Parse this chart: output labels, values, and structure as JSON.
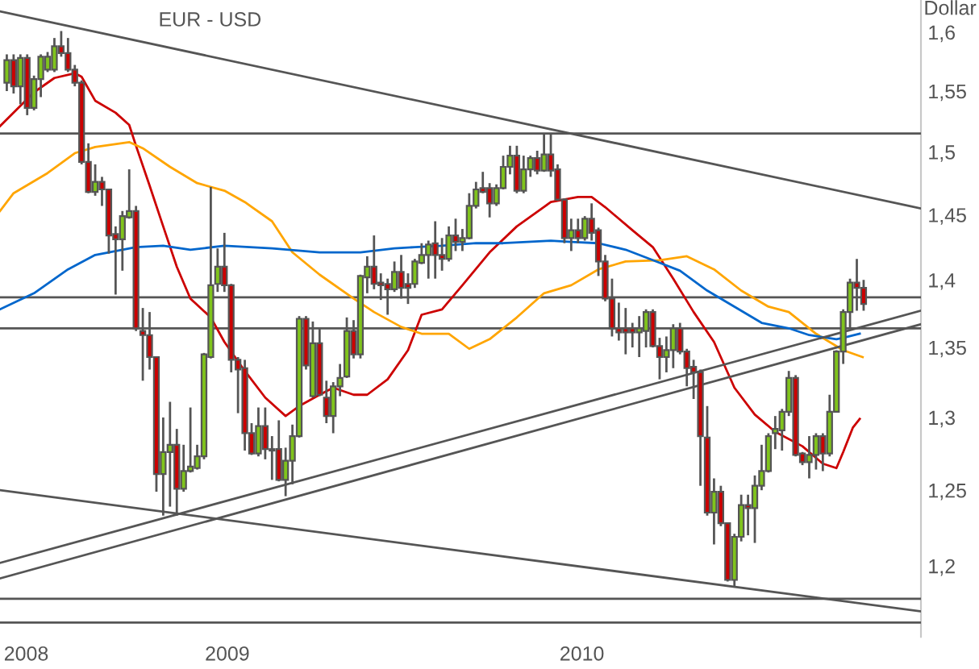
{
  "chart_data": {
    "type": "candlestick",
    "title": "EUR - USD",
    "ylabel": "Dollar",
    "colors": [
      "#80c41c",
      "#cc0000",
      "#80c41c",
      "#cc0000",
      "#80c41c",
      "#80c41c",
      "#80c41c",
      "#80c41c",
      "#cc0000",
      "#cc0000",
      "#cc0000",
      "#cc0000",
      "#cc0000",
      "#80c41c",
      "#cc0000",
      "#cc0000",
      "#cc0000",
      "#80c41c",
      "#80c41c",
      "#cc0000",
      "#cc0000",
      "#cc0000",
      "#cc0000",
      "#80c41c",
      "#80c41c",
      "#cc0000",
      "#80c41c",
      "#80c41c",
      "#80c41c",
      "#80c41c",
      "#80c41c",
      "#80c41c",
      "#cc0000",
      "#cc0000",
      "#cc0000",
      "#cc0000",
      "#cc0000",
      "#80c41c",
      "#cc0000",
      "#cc0000",
      "#cc0000",
      "#80c41c",
      "#80c41c",
      "#80c41c",
      "#cc0000",
      "#80c41c",
      "#cc0000",
      "#cc0000",
      "#80c41c",
      "#80c41c",
      "#80c41c",
      "#cc0000",
      "#80c41c",
      "#80c41c",
      "#cc0000",
      "#cc0000",
      "#cc0000",
      "#80c41c",
      "#cc0000",
      "#cc0000",
      "#80c41c",
      "#80c41c",
      "#80c41c",
      "#cc0000",
      "#cc0000",
      "#80c41c",
      "#cc0000",
      "#80c41c",
      "#80c41c",
      "#80c41c",
      "#cc0000",
      "#cc0000",
      "#80c41c",
      "#80c41c",
      "#80c41c",
      "#cc0000",
      "#80c41c",
      "#80c41c",
      "#cc0000",
      "#80c41c",
      "#cc0000",
      "#cc0000",
      "#cc0000",
      "#80c41c",
      "#cc0000",
      "#80c41c",
      "#cc0000",
      "#cc0000",
      "#cc0000",
      "#cc0000",
      "#cc0000",
      "#cc0000",
      "#cc0000",
      "#80c41c",
      "#80c41c",
      "#cc0000",
      "#cc0000",
      "#80c41c",
      "#80c41c",
      "#cc0000",
      "#cc0000",
      "#cc0000",
      "#cc0000",
      "#cc0000",
      "#80c41c",
      "#cc0000",
      "#cc0000",
      "#80c41c",
      "#80c41c",
      "#cc0000",
      "#80c41c",
      "#80c41c",
      "#80c41c",
      "#80c41c",
      "#80c41c",
      "#80c41c",
      "#cc0000",
      "#cc0000",
      "#80c41c",
      "#80c41c",
      "#cc0000",
      "#80c41c",
      "#80c41c",
      "#80c41c",
      "#80c41c",
      "#cc0000",
      "#cc0000"
    ],
    "x": [
      "2008-05-19",
      "2008-05-26",
      "2008-06-02",
      "2008-06-09",
      "2008-06-16",
      "2008-06-23",
      "2008-06-30",
      "2008-07-07",
      "2008-07-14",
      "2008-07-21",
      "2008-07-28",
      "2008-08-04",
      "2008-08-11",
      "2008-08-18",
      "2008-08-25",
      "2008-09-01",
      "2008-09-08",
      "2008-09-15",
      "2008-09-22",
      "2008-09-29",
      "2008-10-06",
      "2008-10-13",
      "2008-10-20",
      "2008-10-27",
      "2008-11-03",
      "2008-11-10",
      "2008-11-17",
      "2008-11-24",
      "2008-12-01",
      "2008-12-08",
      "2008-12-15",
      "2008-12-22",
      "2008-12-29",
      "2009-01-05",
      "2009-01-12",
      "2009-01-19",
      "2009-01-26",
      "2009-02-02",
      "2009-02-09",
      "2009-02-16",
      "2009-02-23",
      "2009-03-02",
      "2009-03-09",
      "2009-03-16",
      "2009-03-23",
      "2009-03-30",
      "2009-04-06",
      "2009-04-13",
      "2009-04-20",
      "2009-04-27",
      "2009-05-04",
      "2009-05-11",
      "2009-05-18",
      "2009-05-25",
      "2009-06-01",
      "2009-06-08",
      "2009-06-15",
      "2009-06-22",
      "2009-06-29",
      "2009-07-06",
      "2009-07-13",
      "2009-07-20",
      "2009-07-27",
      "2009-08-03",
      "2009-08-10",
      "2009-08-17",
      "2009-08-24",
      "2009-08-31",
      "2009-09-07",
      "2009-09-14",
      "2009-09-21",
      "2009-09-28",
      "2009-10-05",
      "2009-10-12",
      "2009-10-19",
      "2009-10-26",
      "2009-11-02",
      "2009-11-09",
      "2009-11-16",
      "2009-11-23",
      "2009-11-30",
      "2009-12-07",
      "2009-12-14",
      "2009-12-21",
      "2009-12-28",
      "2010-01-04",
      "2010-01-11",
      "2010-01-18",
      "2010-01-25",
      "2010-02-01",
      "2010-02-08",
      "2010-02-15",
      "2010-02-22",
      "2010-03-01",
      "2010-03-08",
      "2010-03-15",
      "2010-03-22",
      "2010-03-29",
      "2010-04-05",
      "2010-04-12",
      "2010-04-19",
      "2010-04-26",
      "2010-05-03",
      "2010-05-10",
      "2010-05-17",
      "2010-05-24",
      "2010-05-31",
      "2010-06-07",
      "2010-06-14",
      "2010-06-21",
      "2010-06-28",
      "2010-07-05",
      "2010-07-12",
      "2010-07-19",
      "2010-07-26",
      "2010-08-02",
      "2010-08-09",
      "2010-08-16",
      "2010-08-23",
      "2010-08-30",
      "2010-09-06",
      "2010-09-13",
      "2010-09-20",
      "2010-09-27",
      "2010-10-04",
      "2010-10-11",
      "2010-10-18"
    ],
    "ohlc": [
      [
        1.557,
        1.581,
        1.55,
        1.576
      ],
      [
        1.576,
        1.581,
        1.548,
        1.554
      ],
      [
        1.554,
        1.581,
        1.539,
        1.578
      ],
      [
        1.578,
        1.581,
        1.53,
        1.536
      ],
      [
        1.536,
        1.563,
        1.534,
        1.56
      ],
      [
        1.56,
        1.581,
        1.545,
        1.579
      ],
      [
        1.568,
        1.583,
        1.566,
        1.579
      ],
      [
        1.568,
        1.595,
        1.566,
        1.588
      ],
      [
        1.588,
        1.601,
        1.579,
        1.582
      ],
      [
        1.582,
        1.595,
        1.566,
        1.568
      ],
      [
        1.568,
        1.572,
        1.554,
        1.557
      ],
      [
        1.557,
        1.559,
        1.49,
        1.492
      ],
      [
        1.492,
        1.507,
        1.467,
        1.468
      ],
      [
        1.468,
        1.49,
        1.465,
        1.476
      ],
      [
        1.476,
        1.48,
        1.457,
        1.47
      ],
      [
        1.47,
        1.47,
        1.42,
        1.434
      ],
      [
        1.435,
        1.441,
        1.389,
        1.431
      ],
      [
        1.431,
        1.453,
        1.407,
        1.449
      ],
      [
        1.448,
        1.486,
        1.447,
        1.453
      ],
      [
        1.453,
        1.457,
        1.362,
        1.364
      ],
      [
        1.362,
        1.379,
        1.326,
        1.359
      ],
      [
        1.359,
        1.376,
        1.334,
        1.343
      ],
      [
        1.343,
        1.343,
        1.249,
        1.261
      ],
      [
        1.261,
        1.3,
        1.233,
        1.276
      ],
      [
        1.276,
        1.311,
        1.239,
        1.281
      ],
      [
        1.281,
        1.292,
        1.233,
        1.251
      ],
      [
        1.251,
        1.281,
        1.249,
        1.263
      ],
      [
        1.263,
        1.307,
        1.262,
        1.266
      ],
      [
        1.265,
        1.281,
        1.264,
        1.273
      ],
      [
        1.273,
        1.346,
        1.271,
        1.345
      ],
      [
        1.343,
        1.472,
        1.342,
        1.396
      ],
      [
        1.397,
        1.424,
        1.391,
        1.41
      ],
      [
        1.41,
        1.436,
        1.391,
        1.396
      ],
      [
        1.396,
        1.397,
        1.332,
        1.341
      ],
      [
        1.341,
        1.343,
        1.303,
        1.334
      ],
      [
        1.335,
        1.341,
        1.277,
        1.289
      ],
      [
        1.289,
        1.296,
        1.274,
        1.275
      ],
      [
        1.275,
        1.307,
        1.273,
        1.294
      ],
      [
        1.294,
        1.307,
        1.271,
        1.278
      ],
      [
        1.278,
        1.287,
        1.257,
        1.277
      ],
      [
        1.278,
        1.298,
        1.256,
        1.257
      ],
      [
        1.257,
        1.279,
        1.246,
        1.27
      ],
      [
        1.27,
        1.295,
        1.254,
        1.287
      ],
      [
        1.287,
        1.373,
        1.286,
        1.371
      ],
      [
        1.371,
        1.373,
        1.334,
        1.337
      ],
      [
        1.315,
        1.369,
        1.314,
        1.353
      ],
      [
        1.353,
        1.364,
        1.315,
        1.316
      ],
      [
        1.314,
        1.326,
        1.296,
        1.301
      ],
      [
        1.301,
        1.325,
        1.289,
        1.322
      ],
      [
        1.322,
        1.338,
        1.315,
        1.328
      ],
      [
        1.329,
        1.372,
        1.328,
        1.362
      ],
      [
        1.362,
        1.37,
        1.342,
        1.345
      ],
      [
        1.345,
        1.404,
        1.342,
        1.403
      ],
      [
        1.402,
        1.418,
        1.39,
        1.41
      ],
      [
        1.41,
        1.434,
        1.393,
        1.397
      ],
      [
        1.398,
        1.405,
        1.385,
        1.396
      ],
      [
        1.397,
        1.401,
        1.374,
        1.393
      ],
      [
        1.393,
        1.414,
        1.391,
        1.406
      ],
      [
        1.406,
        1.419,
        1.386,
        1.394
      ],
      [
        1.397,
        1.405,
        1.382,
        1.394
      ],
      [
        1.397,
        1.416,
        1.394,
        1.414
      ],
      [
        1.413,
        1.428,
        1.412,
        1.419
      ],
      [
        1.419,
        1.43,
        1.401,
        1.427
      ],
      [
        1.428,
        1.445,
        1.401,
        1.419
      ],
      [
        1.419,
        1.432,
        1.407,
        1.416
      ],
      [
        1.416,
        1.441,
        1.414,
        1.434
      ],
      [
        1.434,
        1.447,
        1.422,
        1.429
      ],
      [
        1.429,
        1.439,
        1.422,
        1.432
      ],
      [
        1.432,
        1.467,
        1.431,
        1.457
      ],
      [
        1.457,
        1.476,
        1.455,
        1.47
      ],
      [
        1.471,
        1.484,
        1.467,
        1.468
      ],
      [
        1.471,
        1.475,
        1.448,
        1.459
      ],
      [
        1.459,
        1.474,
        1.457,
        1.471
      ],
      [
        1.471,
        1.497,
        1.47,
        1.488
      ],
      [
        1.488,
        1.505,
        1.482,
        1.497
      ],
      [
        1.497,
        1.505,
        1.467,
        1.469
      ],
      [
        1.469,
        1.497,
        1.467,
        1.486
      ],
      [
        1.486,
        1.497,
        1.48,
        1.495
      ],
      [
        1.495,
        1.501,
        1.482,
        1.485
      ],
      [
        1.485,
        1.515,
        1.484,
        1.498
      ],
      [
        1.498,
        1.515,
        1.48,
        1.485
      ],
      [
        1.486,
        1.49,
        1.461,
        1.462
      ],
      [
        1.462,
        1.463,
        1.428,
        1.432
      ],
      [
        1.432,
        1.447,
        1.422,
        1.438
      ],
      [
        1.438,
        1.447,
        1.428,
        1.432
      ],
      [
        1.432,
        1.449,
        1.43,
        1.447
      ],
      [
        1.447,
        1.459,
        1.43,
        1.436
      ],
      [
        1.438,
        1.44,
        1.403,
        1.414
      ],
      [
        1.414,
        1.419,
        1.384,
        1.386
      ],
      [
        1.386,
        1.401,
        1.358,
        1.364
      ],
      [
        1.364,
        1.383,
        1.355,
        1.361
      ],
      [
        1.364,
        1.379,
        1.345,
        1.361
      ],
      [
        1.364,
        1.368,
        1.35,
        1.361
      ],
      [
        1.361,
        1.373,
        1.343,
        1.364
      ],
      [
        1.362,
        1.378,
        1.35,
        1.376
      ],
      [
        1.376,
        1.378,
        1.35,
        1.351
      ],
      [
        1.351,
        1.357,
        1.327,
        1.343
      ],
      [
        1.343,
        1.358,
        1.332,
        1.348
      ],
      [
        1.348,
        1.367,
        1.335,
        1.364
      ],
      [
        1.364,
        1.368,
        1.345,
        1.347
      ],
      [
        1.347,
        1.349,
        1.322,
        1.335
      ],
      [
        1.336,
        1.341,
        1.313,
        1.332
      ],
      [
        1.332,
        1.334,
        1.253,
        1.287
      ],
      [
        1.286,
        1.308,
        1.233,
        1.235
      ],
      [
        1.235,
        1.258,
        1.214,
        1.249
      ],
      [
        1.249,
        1.253,
        1.226,
        1.228
      ],
      [
        1.228,
        1.228,
        1.19,
        1.191
      ],
      [
        1.191,
        1.221,
        1.187,
        1.219
      ],
      [
        1.219,
        1.247,
        1.216,
        1.24
      ],
      [
        1.24,
        1.247,
        1.22,
        1.238
      ],
      [
        1.238,
        1.26,
        1.215,
        1.253
      ],
      [
        1.253,
        1.281,
        1.25,
        1.263
      ],
      [
        1.263,
        1.289,
        1.262,
        1.287
      ],
      [
        1.289,
        1.301,
        1.278,
        1.292
      ],
      [
        1.291,
        1.306,
        1.277,
        1.304
      ],
      [
        1.304,
        1.333,
        1.301,
        1.328
      ],
      [
        1.328,
        1.33,
        1.273,
        1.274
      ],
      [
        1.275,
        1.276,
        1.267,
        1.269
      ],
      [
        1.269,
        1.287,
        1.258,
        1.274
      ],
      [
        1.274,
        1.289,
        1.264,
        1.287
      ],
      [
        1.287,
        1.289,
        1.263,
        1.275
      ],
      [
        1.275,
        1.316,
        1.273,
        1.304
      ],
      [
        1.304,
        1.348,
        1.304,
        1.347
      ],
      [
        1.347,
        1.378,
        1.338,
        1.376
      ],
      [
        1.376,
        1.401,
        1.364,
        1.398
      ],
      [
        1.398,
        1.416,
        1.377,
        1.394
      ],
      [
        1.394,
        1.4,
        1.377,
        1.382
      ]
    ],
    "series": [
      {
        "type": "line",
        "color": "#cc0000",
        "x": [
          "2008-05-12",
          "2008-06-16",
          "2008-07-07",
          "2008-07-28",
          "2008-08-04",
          "2008-08-18",
          "2008-09-08",
          "2008-09-22",
          "2008-09-29",
          "2008-10-13",
          "2008-10-27",
          "2008-11-10",
          "2008-11-24",
          "2008-12-15",
          "2008-12-29",
          "2009-01-19",
          "2009-02-09",
          "2009-03-02",
          "2009-03-16",
          "2009-04-06",
          "2009-04-20",
          "2009-05-11",
          "2009-05-25",
          "2009-06-15",
          "2009-07-06",
          "2009-07-20",
          "2009-08-10",
          "2009-08-31",
          "2009-09-28",
          "2009-10-26",
          "2009-11-30",
          "2009-12-28",
          "2010-01-11",
          "2010-01-25",
          "2010-02-22",
          "2010-03-15",
          "2010-04-05",
          "2010-04-26",
          "2010-05-17",
          "2010-06-07",
          "2010-06-28",
          "2010-07-19",
          "2010-08-16",
          "2010-09-06",
          "2010-09-20",
          "2010-09-27",
          "2010-10-07",
          "2010-10-14"
        ],
        "values": [
          1.521,
          1.549,
          1.561,
          1.565,
          1.562,
          1.542,
          1.532,
          1.522,
          1.505,
          1.473,
          1.441,
          1.41,
          1.386,
          1.372,
          1.354,
          1.333,
          1.314,
          1.301,
          1.308,
          1.316,
          1.321,
          1.316,
          1.316,
          1.327,
          1.348,
          1.374,
          1.378,
          1.396,
          1.421,
          1.441,
          1.46,
          1.464,
          1.464,
          1.456,
          1.438,
          1.425,
          1.401,
          1.376,
          1.354,
          1.321,
          1.302,
          1.29,
          1.28,
          1.268,
          1.265,
          1.276,
          1.293,
          1.299
        ]
      },
      {
        "type": "line",
        "color": "#ffa500",
        "x": [
          "2008-05-12",
          "2008-05-26",
          "2008-06-30",
          "2008-07-28",
          "2008-08-18",
          "2008-09-22",
          "2008-10-06",
          "2008-11-03",
          "2008-12-01",
          "2008-12-29",
          "2009-01-19",
          "2009-02-16",
          "2009-03-09",
          "2009-04-06",
          "2009-05-11",
          "2009-06-01",
          "2009-06-29",
          "2009-07-20",
          "2009-08-17",
          "2009-09-07",
          "2009-09-28",
          "2009-10-26",
          "2009-11-23",
          "2009-12-21",
          "2010-01-18",
          "2010-02-15",
          "2010-03-22",
          "2010-04-19",
          "2010-05-17",
          "2010-06-14",
          "2010-07-12",
          "2010-08-02",
          "2010-08-30",
          "2010-09-27",
          "2010-10-17"
        ],
        "values": [
          1.453,
          1.467,
          1.483,
          1.499,
          1.504,
          1.508,
          1.503,
          1.488,
          1.475,
          1.469,
          1.46,
          1.445,
          1.421,
          1.404,
          1.386,
          1.376,
          1.365,
          1.36,
          1.36,
          1.349,
          1.356,
          1.372,
          1.39,
          1.396,
          1.408,
          1.414,
          1.415,
          1.418,
          1.408,
          1.392,
          1.38,
          1.376,
          1.36,
          1.348,
          1.343
        ]
      },
      {
        "type": "line",
        "color": "#0066cc",
        "x": [
          "2008-05-12",
          "2008-06-16",
          "2008-07-21",
          "2008-08-18",
          "2008-09-29",
          "2008-10-27",
          "2008-11-24",
          "2008-12-29",
          "2009-02-16",
          "2009-04-06",
          "2009-05-18",
          "2009-06-22",
          "2009-07-13",
          "2009-08-10",
          "2009-09-14",
          "2009-10-12",
          "2009-11-30",
          "2009-12-21",
          "2010-01-18",
          "2010-02-15",
          "2010-03-01",
          "2010-03-22",
          "2010-04-12",
          "2010-05-10",
          "2010-06-07",
          "2010-07-05",
          "2010-08-02",
          "2010-08-23",
          "2010-09-20",
          "2010-09-27",
          "2010-10-14"
        ],
        "values": [
          1.378,
          1.39,
          1.408,
          1.419,
          1.425,
          1.426,
          1.423,
          1.426,
          1.424,
          1.421,
          1.421,
          1.424,
          1.425,
          1.426,
          1.428,
          1.428,
          1.43,
          1.429,
          1.428,
          1.423,
          1.419,
          1.413,
          1.407,
          1.392,
          1.38,
          1.368,
          1.364,
          1.359,
          1.356,
          1.357,
          1.36
        ]
      },
      {
        "type": "line",
        "color": "#555555",
        "x": [
          "2008-05-12",
          "2010-12-16"
        ],
        "values": [
          1.618,
          1.455
        ]
      },
      {
        "type": "line",
        "color": "#555555",
        "x": [
          "2008-05-12",
          "2010-12-16"
        ],
        "values": [
          1.202,
          1.377
        ]
      },
      {
        "type": "line",
        "color": "#555555",
        "x": [
          "2008-05-12",
          "2010-12-16"
        ],
        "values": [
          1.192,
          1.367
        ]
      },
      {
        "type": "line",
        "color": "#555555",
        "x": [
          "2008-05-12",
          "2010-12-16"
        ],
        "values": [
          1.25,
          1.171
        ]
      }
    ],
    "ref_lines": [
      {
        "axis": "y",
        "value": 1.515,
        "color": "#555555"
      },
      {
        "axis": "y",
        "value": 1.387,
        "color": "#555555"
      },
      {
        "axis": "y",
        "value": 1.364,
        "color": "#555555"
      },
      {
        "axis": "y",
        "value": 1.179,
        "color": "#555555"
      },
      {
        "axis": "y",
        "value": 1.164,
        "color": "#555555"
      }
    ],
    "log": true,
    "xlim": [
      "2008-05-12",
      "2010-12-16"
    ],
    "ylim": [
      1.155,
      1.628
    ],
    "xticks": [
      {
        "value": "2008-06-08",
        "label": "2008"
      },
      {
        "value": "2009-01-01",
        "label": "2009"
      },
      {
        "value": "2010-01-01",
        "label": "2010"
      }
    ],
    "yticks": [
      {
        "value": 1.2,
        "label": "1,2"
      },
      {
        "value": 1.25,
        "label": "1,25"
      },
      {
        "value": 1.3,
        "label": "1,3"
      },
      {
        "value": 1.35,
        "label": "1,35"
      },
      {
        "value": 1.4,
        "label": "1,4"
      },
      {
        "value": 1.45,
        "label": "1,45"
      },
      {
        "value": 1.5,
        "label": "1,5"
      },
      {
        "value": 1.55,
        "label": "1,55"
      },
      {
        "value": 1.6,
        "label": "1,6"
      }
    ]
  }
}
